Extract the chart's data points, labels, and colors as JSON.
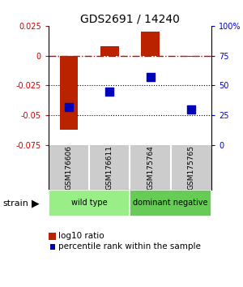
{
  "title": "GDS2691 / 14240",
  "samples": [
    "GSM176606",
    "GSM176611",
    "GSM175764",
    "GSM175765"
  ],
  "log10_ratio": [
    -0.062,
    0.008,
    0.02,
    -0.001
  ],
  "percentile_rank": [
    32,
    45,
    57,
    30
  ],
  "ylim_left": [
    -0.075,
    0.025
  ],
  "ylim_right": [
    0,
    100
  ],
  "yticks_left": [
    -0.075,
    -0.05,
    -0.025,
    0,
    0.025
  ],
  "yticks_right": [
    0,
    25,
    50,
    75,
    "100%"
  ],
  "ytick_vals_right": [
    0,
    25,
    50,
    75,
    100
  ],
  "ytick_labels_left": [
    "-0.075",
    "-0.05",
    "-0.025",
    "0",
    "0.025"
  ],
  "ytick_labels_right": [
    "0",
    "25",
    "50",
    "75",
    "100%"
  ],
  "hlines_dotted": [
    -0.025,
    -0.05
  ],
  "bar_color": "#bb2200",
  "dot_color": "#0000bb",
  "bar_width": 0.45,
  "dot_size": 45,
  "groups": [
    {
      "label": "wild type",
      "samples": [
        0,
        1
      ],
      "color": "#99ee88"
    },
    {
      "label": "dominant negative",
      "samples": [
        2,
        3
      ],
      "color": "#66cc55"
    }
  ],
  "strain_label": "strain",
  "legend_bar_label": "log10 ratio",
  "legend_dot_label": "percentile rank within the sample",
  "bg_color": "#ffffff",
  "plot_bg": "#ffffff",
  "tick_color_left": "#cc0000",
  "tick_color_right": "#0000cc",
  "sample_box_color": "#cccccc",
  "dotted_line_color": "#000000",
  "zero_line_color": "#cc0000"
}
